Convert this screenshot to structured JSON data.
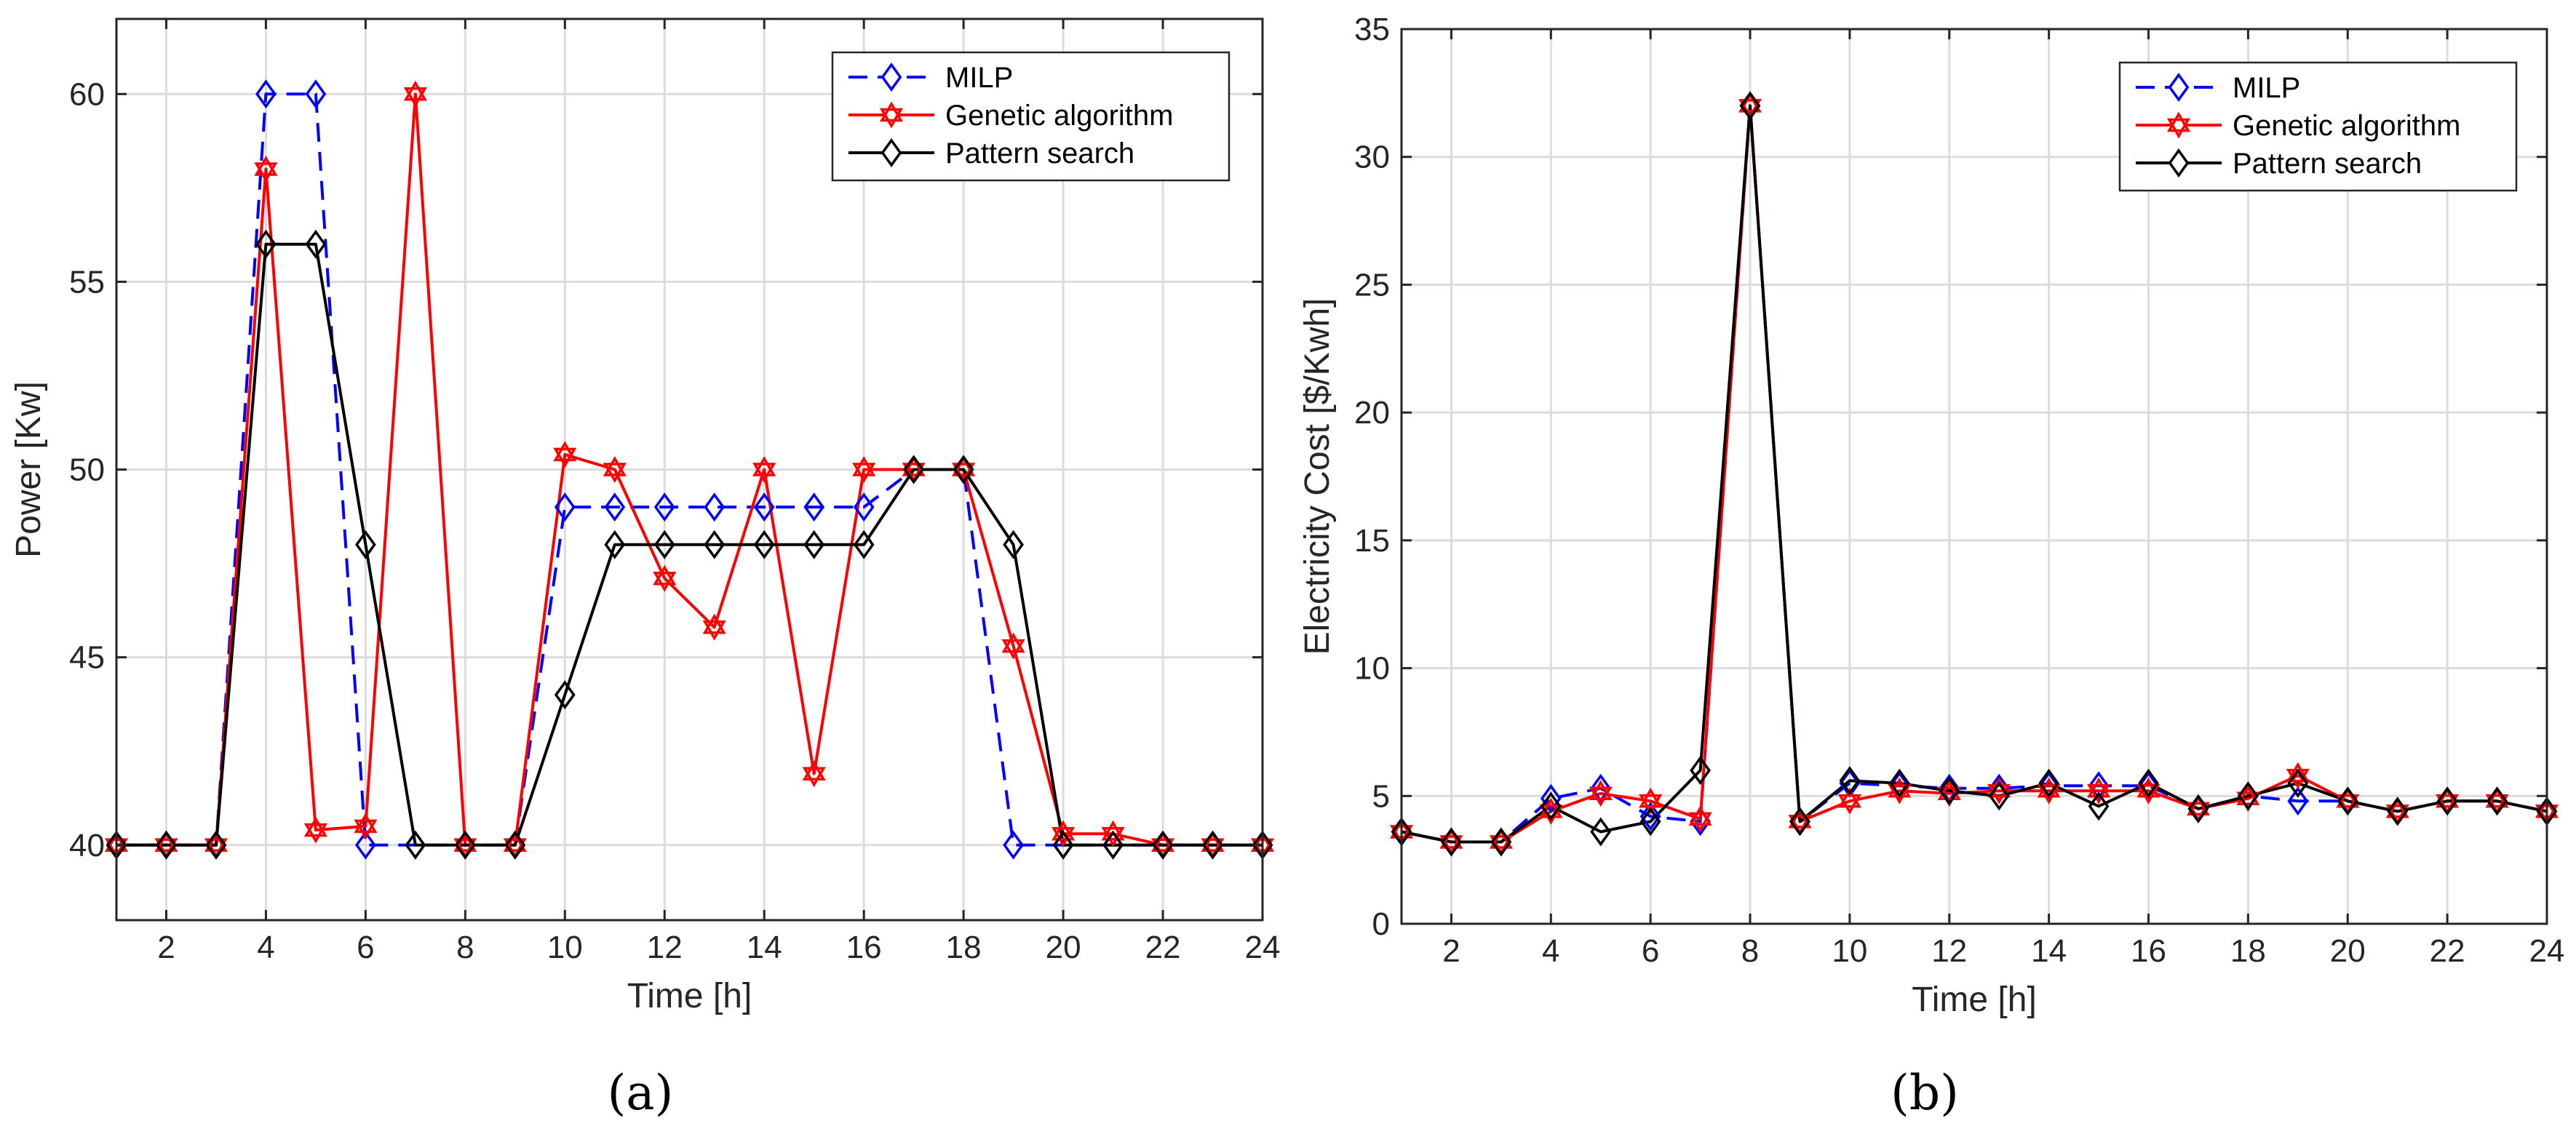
{
  "chart_data": [
    {
      "type": "line",
      "caption": "(a)",
      "xlabel": "Time [h]",
      "ylabel": "Power [Kw]",
      "xlim": [
        1,
        24
      ],
      "ylim": [
        38,
        62
      ],
      "xticks": [
        2,
        4,
        6,
        8,
        10,
        12,
        14,
        16,
        18,
        20,
        22,
        24
      ],
      "yticks": [
        40,
        45,
        50,
        55,
        60
      ],
      "grid": true,
      "legend": "top-right",
      "x": [
        1,
        2,
        3,
        4,
        5,
        6,
        7,
        8,
        9,
        10,
        11,
        12,
        13,
        14,
        15,
        16,
        17,
        18,
        19,
        20,
        21,
        22,
        23,
        24
      ],
      "series": [
        {
          "name": "MILP",
          "color": "#0000ff",
          "dashed": true,
          "marker": "diamond",
          "values": [
            40,
            40,
            40,
            60,
            60,
            40,
            40,
            40,
            40,
            49,
            49,
            49,
            49,
            49,
            49,
            49,
            50,
            50,
            40,
            40,
            40,
            40,
            40,
            40
          ]
        },
        {
          "name": "Genetic algorithm",
          "color": "#ff0000",
          "dashed": false,
          "marker": "hexagram",
          "values": [
            40,
            40,
            40,
            58,
            40.4,
            40.5,
            60,
            40,
            40,
            50.4,
            50,
            47.1,
            45.8,
            50,
            41.9,
            50,
            50,
            50,
            45.3,
            40.3,
            40.3,
            40,
            40,
            40
          ]
        },
        {
          "name": "Pattern search",
          "color": "#000000",
          "dashed": false,
          "marker": "diamond",
          "values": [
            40,
            40,
            40,
            56,
            56,
            48,
            40,
            40,
            40,
            44,
            48,
            48,
            48,
            48,
            48,
            48,
            50,
            50,
            48,
            40,
            40,
            40,
            40,
            40
          ]
        }
      ]
    },
    {
      "type": "line",
      "caption": "(b)",
      "xlabel": "Time [h]",
      "ylabel": "Electricity Cost [$/Kwh]",
      "xlim": [
        1,
        24
      ],
      "ylim": [
        0,
        35
      ],
      "xticks": [
        2,
        4,
        6,
        8,
        10,
        12,
        14,
        16,
        18,
        20,
        22,
        24
      ],
      "yticks": [
        0,
        5,
        10,
        15,
        20,
        25,
        30,
        35
      ],
      "grid": true,
      "legend": "top-right",
      "x": [
        1,
        2,
        3,
        4,
        5,
        6,
        7,
        8,
        9,
        10,
        11,
        12,
        13,
        14,
        15,
        16,
        17,
        18,
        19,
        20,
        21,
        22,
        23,
        24
      ],
      "series": [
        {
          "name": "MILP",
          "color": "#0000ff",
          "dashed": true,
          "marker": "diamond",
          "values": [
            3.6,
            3.2,
            3.2,
            4.9,
            5.3,
            4.2,
            4.0,
            32.0,
            4.0,
            5.5,
            5.4,
            5.3,
            5.3,
            5.4,
            5.4,
            5.4,
            4.5,
            5.0,
            4.8,
            4.8,
            4.4,
            4.8,
            4.8,
            4.4
          ]
        },
        {
          "name": "Genetic algorithm",
          "color": "#ff0000",
          "dashed": false,
          "marker": "hexagram",
          "values": [
            3.6,
            3.2,
            3.2,
            4.4,
            5.1,
            4.8,
            4.1,
            32.0,
            4.0,
            4.8,
            5.2,
            5.1,
            5.2,
            5.2,
            5.2,
            5.2,
            4.5,
            4.9,
            5.8,
            4.8,
            4.4,
            4.8,
            4.8,
            4.4
          ]
        },
        {
          "name": "Pattern search",
          "color": "#000000",
          "dashed": false,
          "marker": "diamond",
          "values": [
            3.6,
            3.2,
            3.2,
            4.6,
            3.6,
            4.0,
            6.0,
            32.0,
            4.0,
            5.6,
            5.5,
            5.2,
            5.0,
            5.5,
            4.6,
            5.5,
            4.5,
            5.0,
            5.5,
            4.8,
            4.4,
            4.8,
            4.8,
            4.4
          ]
        }
      ]
    }
  ]
}
